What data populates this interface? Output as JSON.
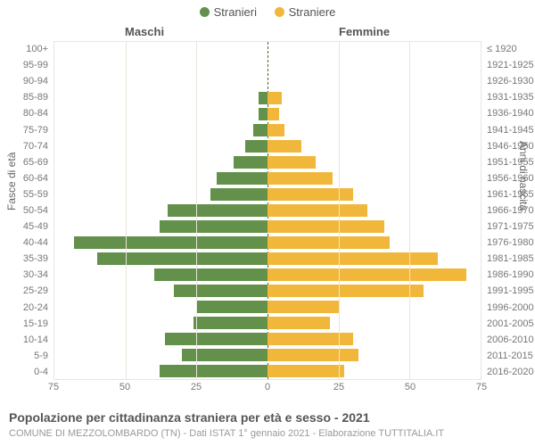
{
  "legend": {
    "items": [
      {
        "label": "Stranieri",
        "color": "#63904a"
      },
      {
        "label": "Straniere",
        "color": "#f1b73b"
      }
    ]
  },
  "headers": {
    "left": "Maschi",
    "right": "Femmine"
  },
  "axis_titles": {
    "left": "Fasce di età",
    "right": "Anni di nascita"
  },
  "chart": {
    "type": "pyramid-bar",
    "x_max": 75,
    "x_ticks": [
      75,
      50,
      25,
      0,
      25,
      50,
      75
    ],
    "grid_color": "#e9e5da",
    "midline_color": "#5a5a3a",
    "background": "#ffffff",
    "bar_color_left": "#63904a",
    "bar_color_right": "#f1b73b",
    "label_fontsize": 11,
    "bands": [
      {
        "age": "100+",
        "birth": "≤ 1920",
        "m": 0,
        "f": 0
      },
      {
        "age": "95-99",
        "birth": "1921-1925",
        "m": 0,
        "f": 0
      },
      {
        "age": "90-94",
        "birth": "1926-1930",
        "m": 0,
        "f": 0
      },
      {
        "age": "85-89",
        "birth": "1931-1935",
        "m": 3,
        "f": 5
      },
      {
        "age": "80-84",
        "birth": "1936-1940",
        "m": 3,
        "f": 4
      },
      {
        "age": "75-79",
        "birth": "1941-1945",
        "m": 5,
        "f": 6
      },
      {
        "age": "70-74",
        "birth": "1946-1950",
        "m": 8,
        "f": 12
      },
      {
        "age": "65-69",
        "birth": "1951-1955",
        "m": 12,
        "f": 17
      },
      {
        "age": "60-64",
        "birth": "1956-1960",
        "m": 18,
        "f": 23
      },
      {
        "age": "55-59",
        "birth": "1961-1965",
        "m": 20,
        "f": 30
      },
      {
        "age": "50-54",
        "birth": "1966-1970",
        "m": 35,
        "f": 35
      },
      {
        "age": "45-49",
        "birth": "1971-1975",
        "m": 38,
        "f": 41
      },
      {
        "age": "40-44",
        "birth": "1976-1980",
        "m": 68,
        "f": 43
      },
      {
        "age": "35-39",
        "birth": "1981-1985",
        "m": 60,
        "f": 60
      },
      {
        "age": "30-34",
        "birth": "1986-1990",
        "m": 40,
        "f": 70
      },
      {
        "age": "25-29",
        "birth": "1991-1995",
        "m": 33,
        "f": 55
      },
      {
        "age": "20-24",
        "birth": "1996-2000",
        "m": 25,
        "f": 25
      },
      {
        "age": "15-19",
        "birth": "2001-2005",
        "m": 26,
        "f": 22
      },
      {
        "age": "10-14",
        "birth": "2006-2010",
        "m": 36,
        "f": 30
      },
      {
        "age": "5-9",
        "birth": "2011-2015",
        "m": 30,
        "f": 32
      },
      {
        "age": "0-4",
        "birth": "2016-2020",
        "m": 38,
        "f": 27
      }
    ]
  },
  "footer": {
    "title": "Popolazione per cittadinanza straniera per età e sesso - 2021",
    "subtitle": "COMUNE DI MEZZOLOMBARDO (TN) - Dati ISTAT 1° gennaio 2021 - Elaborazione TUTTITALIA.IT"
  }
}
